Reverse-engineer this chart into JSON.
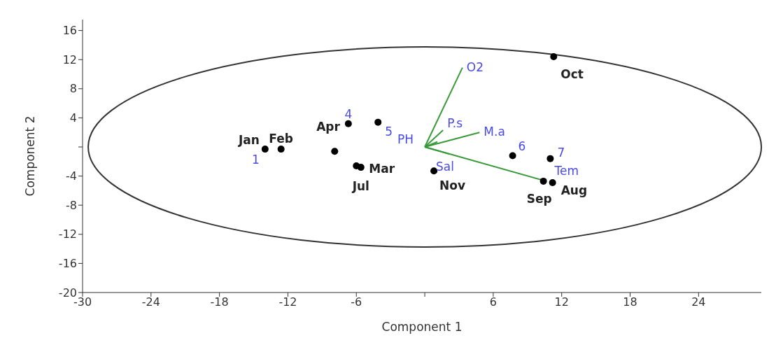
{
  "chart_data": {
    "type": "scatter",
    "xlabel": "Component 1",
    "ylabel": "Component 2",
    "xlim": [
      -30,
      29.5
    ],
    "ylim": [
      -20,
      17.5
    ],
    "xticks": [
      -30,
      -24,
      -18,
      -12,
      -6,
      {
        "value": 0,
        "label": null
      },
      6,
      12,
      18,
      24
    ],
    "yticks": [
      -20,
      -16,
      -12,
      -8,
      -4,
      {
        "value": 0,
        "label": null
      },
      4,
      8,
      12,
      16
    ],
    "grid": false,
    "legend": false,
    "marker": "circle",
    "series": [
      {
        "color": "#000000",
        "x": [
          -14.0,
          -12.6,
          -7.9,
          -6.7,
          -4.1,
          -6.0,
          -5.6,
          0.8,
          7.7,
          11.0,
          10.4,
          11.2,
          11.3
        ],
        "values": [
          -0.3,
          -0.3,
          -0.6,
          3.2,
          3.4,
          -2.6,
          -2.8,
          -3.3,
          -1.2,
          -1.6,
          -4.7,
          -4.9,
          12.4
        ]
      },
      {
        "type": "line",
        "name": "O2",
        "color": "#3a9a3a",
        "marker": "none",
        "x": [
          0,
          3.3
        ],
        "values": [
          0,
          10.9
        ]
      },
      {
        "type": "line",
        "name": "P.s",
        "color": "#3a9a3a",
        "marker": "none",
        "x": [
          0,
          1.6
        ],
        "values": [
          0,
          2.3
        ]
      },
      {
        "type": "line",
        "name": "M.a",
        "color": "#3a9a3a",
        "marker": "none",
        "x": [
          0,
          4.8
        ],
        "values": [
          0,
          2.0
        ]
      },
      {
        "type": "line",
        "name": "PH",
        "color": "#3a9a3a",
        "marker": "none",
        "x": [
          0,
          1.1
        ],
        "values": [
          0,
          0.7
        ]
      },
      {
        "type": "line",
        "name": "Sal",
        "color": "#3a9a3a",
        "marker": "none",
        "x": [
          0,
          2.2
        ],
        "values": [
          0,
          -1.0
        ]
      },
      {
        "type": "line",
        "name": "Tem",
        "color": "#3a9a3a",
        "marker": "none",
        "x": [
          0,
          10.4
        ],
        "values": [
          0,
          -4.6
        ]
      }
    ],
    "annotations": [
      {
        "text": "Jan",
        "x": -14.0,
        "y": -0.3
      },
      {
        "text": "1",
        "x": -14.0,
        "y": -0.3
      },
      {
        "text": "Feb",
        "x": -12.6,
        "y": -0.3
      },
      {
        "text": "Apr",
        "x": -6.7,
        "y": 3.2
      },
      {
        "text": "4",
        "x": -6.7,
        "y": 3.2
      },
      {
        "text": "5",
        "x": -4.1,
        "y": 3.4
      },
      {
        "text": "Mar",
        "x": -6.0,
        "y": -2.6
      },
      {
        "text": "Jul",
        "x": -5.6,
        "y": -2.8
      },
      {
        "text": "Nov",
        "x": 0.8,
        "y": -3.3
      },
      {
        "text": "6",
        "x": 7.7,
        "y": -1.2
      },
      {
        "text": "7",
        "x": 11.0,
        "y": -1.6
      },
      {
        "text": "Aug",
        "x": 11.2,
        "y": -4.9
      },
      {
        "text": "Sep",
        "x": 10.4,
        "y": -4.7
      },
      {
        "text": "Oct",
        "x": 11.3,
        "y": 12.4
      }
    ]
  }
}
